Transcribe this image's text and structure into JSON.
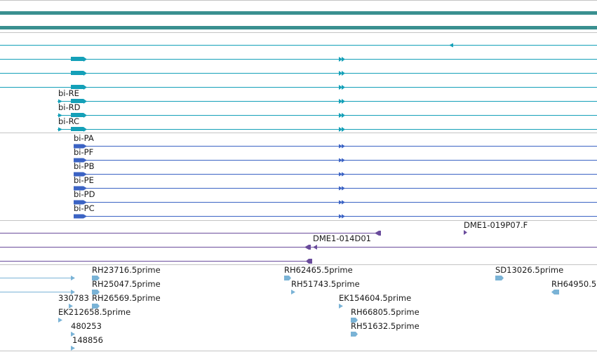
{
  "colors": {
    "gene": "#3a9090",
    "transcript": "#14a0b8",
    "protein": "#3b63c4",
    "bac": "#6a4c9c",
    "est": "#7ab3d6",
    "divider": "#c4c4c4"
  },
  "tracks": {
    "genes": {
      "labels": []
    },
    "transcripts": {
      "labels": [
        "bi-RE",
        "bi-RD",
        "bi-RC"
      ]
    },
    "proteins": {
      "labels": [
        "bi-PA",
        "bi-PF",
        "bi-PB",
        "bi-PE",
        "bi-PD",
        "bi-PC"
      ]
    },
    "bacs": {
      "labels": [
        "DME1-019P07.F",
        "DME1-014D01"
      ]
    },
    "ests": {
      "labels": [
        "RH23716.5prime",
        "RH25047.5prime",
        "RH26569.5prime",
        "EK212658.5prime",
        "330783",
        "480253",
        "148856",
        "RH62465.5prime",
        "RH51743.5prime",
        "EK154604.5prime",
        "RH66805.5prime",
        "RH51632.5prime",
        "SD13026.5prime",
        "RH64950.5"
      ]
    }
  }
}
